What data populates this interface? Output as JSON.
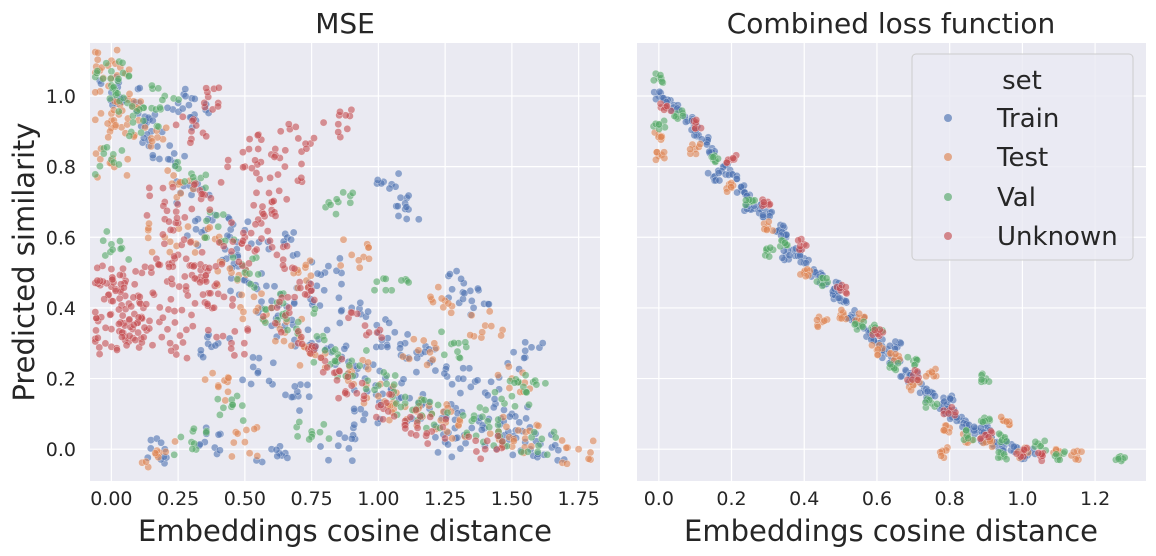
{
  "figure": {
    "ylabel": "Predicted similarity"
  },
  "colors": {
    "background": "#eaeaf2",
    "grid": "#ffffff",
    "text": "#262626",
    "train": "#4c72b0",
    "test": "#dd8452",
    "val": "#55a868",
    "unknown": "#c44e52"
  },
  "chart_data": [
    {
      "type": "scatter",
      "title": "MSE",
      "xlabel": "Embeddings cosine distance",
      "ylabel": "Predicted similarity",
      "xlim": [
        -0.08,
        1.83
      ],
      "ylim": [
        -0.09,
        1.15
      ],
      "xticks": [
        0.0,
        0.25,
        0.5,
        0.75,
        1.0,
        1.25,
        1.5,
        1.75
      ],
      "xtick_labels": [
        "0.00",
        "0.25",
        "0.50",
        "0.75",
        "1.00",
        "1.25",
        "1.50",
        "1.75"
      ],
      "yticks": [
        0.0,
        0.2,
        0.4,
        0.6,
        0.8,
        1.0
      ],
      "ytick_labels": [
        "0.0",
        "0.2",
        "0.4",
        "0.6",
        "0.8",
        "1.0"
      ],
      "grid": true,
      "series": [
        {
          "name": "Train",
          "points": [
            [
              0.0,
              1.01
            ],
            [
              0.05,
              0.99
            ],
            [
              0.1,
              0.95
            ],
            [
              0.15,
              0.9
            ],
            [
              0.22,
              0.82
            ],
            [
              0.3,
              0.72
            ],
            [
              0.35,
              0.62
            ],
            [
              0.45,
              0.55
            ],
            [
              0.5,
              0.48
            ],
            [
              0.6,
              0.42
            ],
            [
              0.65,
              0.35
            ],
            [
              0.75,
              0.3
            ],
            [
              0.85,
              0.25
            ],
            [
              0.95,
              0.2
            ],
            [
              1.05,
              0.17
            ],
            [
              1.15,
              0.12
            ],
            [
              1.25,
              0.09
            ],
            [
              1.35,
              0.06
            ],
            [
              1.45,
              0.04
            ],
            [
              1.55,
              0.02
            ],
            [
              1.65,
              0.005
            ],
            [
              0.4,
              0.3
            ],
            [
              0.55,
              0.22
            ],
            [
              0.7,
              0.15
            ],
            [
              0.8,
              0.5
            ],
            [
              0.9,
              0.4
            ],
            [
              1.0,
              0.33
            ],
            [
              1.1,
              0.3
            ],
            [
              1.2,
              0.25
            ],
            [
              1.3,
              0.2
            ],
            [
              1.4,
              0.16
            ],
            [
              1.5,
              0.1
            ],
            [
              1.55,
              0.26
            ],
            [
              0.25,
              0.98
            ],
            [
              0.3,
              0.94
            ],
            [
              1.05,
              0.75
            ],
            [
              0.35,
              0.02
            ],
            [
              0.6,
              0.0
            ],
            [
              0.85,
              0.01
            ],
            [
              0.2,
              0.0
            ],
            [
              1.1,
              0.68
            ],
            [
              0.5,
              0.62
            ],
            [
              0.65,
              0.58
            ],
            [
              0.75,
              0.45
            ],
            [
              1.32,
              0.47
            ],
            [
              1.35,
              0.42
            ],
            [
              0.95,
              0.1
            ],
            [
              1.25,
              0.02
            ]
          ]
        },
        {
          "name": "Test",
          "points": [
            [
              0.0,
              1.1
            ],
            [
              0.0,
              1.05
            ],
            [
              0.0,
              0.95
            ],
            [
              0.0,
              0.91
            ],
            [
              0.0,
              0.81
            ],
            [
              0.08,
              0.97
            ],
            [
              0.15,
              0.88
            ],
            [
              0.25,
              0.75
            ],
            [
              0.35,
              0.6
            ],
            [
              0.45,
              0.5
            ],
            [
              0.55,
              0.4
            ],
            [
              0.65,
              0.33
            ],
            [
              0.75,
              0.27
            ],
            [
              0.9,
              0.22
            ],
            [
              1.0,
              0.15
            ],
            [
              1.1,
              0.12
            ],
            [
              1.2,
              0.1
            ],
            [
              1.3,
              0.07
            ],
            [
              1.45,
              0.05
            ],
            [
              1.55,
              0.03
            ],
            [
              1.75,
              0.0
            ],
            [
              0.2,
              0.6
            ],
            [
              0.18,
              -0.01
            ],
            [
              0.5,
              0.02
            ],
            [
              0.9,
              0.55
            ],
            [
              1.25,
              0.42
            ],
            [
              1.4,
              0.35
            ],
            [
              1.5,
              0.2
            ],
            [
              0.7,
              0.5
            ],
            [
              0.4,
              0.18
            ],
            [
              1.15,
              0.28
            ]
          ]
        },
        {
          "name": "Val",
          "points": [
            [
              0.0,
              1.07
            ],
            [
              0.0,
              1.03
            ],
            [
              0.0,
              0.82
            ],
            [
              0.0,
              0.58
            ],
            [
              0.06,
              0.98
            ],
            [
              0.12,
              0.93
            ],
            [
              0.2,
              1.0
            ],
            [
              0.3,
              0.78
            ],
            [
              0.4,
              0.63
            ],
            [
              0.5,
              0.5
            ],
            [
              0.6,
              0.4
            ],
            [
              0.7,
              0.36
            ],
            [
              0.8,
              0.28
            ],
            [
              0.9,
              0.25
            ],
            [
              1.0,
              0.18
            ],
            [
              1.1,
              0.13
            ],
            [
              1.2,
              0.1
            ],
            [
              1.35,
              0.08
            ],
            [
              1.45,
              0.05
            ],
            [
              1.58,
              0.19
            ],
            [
              1.6,
              0.01
            ],
            [
              0.3,
              0.02
            ],
            [
              0.45,
              0.12
            ],
            [
              0.85,
              0.7
            ],
            [
              1.05,
              0.45
            ],
            [
              1.3,
              0.3
            ],
            [
              0.75,
              0.05
            ],
            [
              1.5,
              0.15
            ]
          ]
        },
        {
          "name": "Unknown",
          "points": [
            [
              0.0,
              0.34
            ],
            [
              0.0,
              0.29
            ],
            [
              0.0,
              0.42
            ],
            [
              0.0,
              0.46
            ],
            [
              0.0,
              0.51
            ],
            [
              0.05,
              0.47
            ],
            [
              0.05,
              0.35
            ],
            [
              0.08,
              0.34
            ],
            [
              0.1,
              0.33
            ],
            [
              0.12,
              0.4
            ],
            [
              0.15,
              0.5
            ],
            [
              0.18,
              0.36
            ],
            [
              0.2,
              0.7
            ],
            [
              0.25,
              0.55
            ],
            [
              0.28,
              0.45
            ],
            [
              0.3,
              0.52
            ],
            [
              0.35,
              0.48
            ],
            [
              0.4,
              0.44
            ],
            [
              0.45,
              0.56
            ],
            [
              0.5,
              0.6
            ],
            [
              0.55,
              0.65
            ],
            [
              0.6,
              0.7
            ],
            [
              0.65,
              0.8
            ],
            [
              0.7,
              0.88
            ],
            [
              0.85,
              0.92
            ],
            [
              0.4,
              0.98
            ],
            [
              0.3,
              0.9
            ],
            [
              0.55,
              0.85
            ],
            [
              0.6,
              0.4
            ],
            [
              0.7,
              0.3
            ],
            [
              0.8,
              0.25
            ],
            [
              0.9,
              0.18
            ],
            [
              1.0,
              0.12
            ],
            [
              1.1,
              0.08
            ],
            [
              1.2,
              0.05
            ],
            [
              1.4,
              0.0
            ],
            [
              0.45,
              0.3
            ],
            [
              0.25,
              0.64
            ],
            [
              0.35,
              0.72
            ],
            [
              0.5,
              0.8
            ],
            [
              0.62,
              0.55
            ],
            [
              0.75,
              0.45
            ],
            [
              0.95,
              0.35
            ],
            [
              0.3,
              0.38
            ],
            [
              0.22,
              0.3
            ]
          ]
        }
      ]
    },
    {
      "type": "scatter",
      "title": "Combined loss function",
      "xlabel": "Embeddings cosine distance",
      "ylabel": "",
      "xlim": [
        -0.06,
        1.34
      ],
      "ylim": [
        -0.09,
        1.15
      ],
      "xticks": [
        0.0,
        0.2,
        0.4,
        0.6,
        0.8,
        1.0,
        1.2
      ],
      "xtick_labels": [
        "0.0",
        "0.2",
        "0.4",
        "0.6",
        "0.8",
        "1.0",
        "1.2"
      ],
      "yticks": [
        0.0,
        0.2,
        0.4,
        0.6,
        0.8,
        1.0
      ],
      "grid": true,
      "legend": {
        "title": "set",
        "position": "upper right",
        "entries": [
          "Train",
          "Test",
          "Val",
          "Unknown"
        ]
      },
      "series": [
        {
          "name": "Train",
          "points": [
            [
              0.0,
              1.0
            ],
            [
              0.02,
              0.98
            ],
            [
              0.05,
              0.96
            ],
            [
              0.08,
              0.93
            ],
            [
              0.1,
              0.9
            ],
            [
              0.13,
              0.87
            ],
            [
              0.15,
              0.84
            ],
            [
              0.18,
              0.8
            ],
            [
              0.2,
              0.78
            ],
            [
              0.23,
              0.74
            ],
            [
              0.25,
              0.72
            ],
            [
              0.28,
              0.68
            ],
            [
              0.3,
              0.66
            ],
            [
              0.33,
              0.62
            ],
            [
              0.35,
              0.6
            ],
            [
              0.38,
              0.56
            ],
            [
              0.4,
              0.54
            ],
            [
              0.43,
              0.5
            ],
            [
              0.45,
              0.48
            ],
            [
              0.48,
              0.44
            ],
            [
              0.5,
              0.42
            ],
            [
              0.53,
              0.38
            ],
            [
              0.55,
              0.36
            ],
            [
              0.58,
              0.33
            ],
            [
              0.6,
              0.3
            ],
            [
              0.63,
              0.27
            ],
            [
              0.65,
              0.25
            ],
            [
              0.68,
              0.22
            ],
            [
              0.7,
              0.2
            ],
            [
              0.73,
              0.17
            ],
            [
              0.75,
              0.15
            ],
            [
              0.78,
              0.12
            ],
            [
              0.8,
              0.1
            ],
            [
              0.83,
              0.08
            ],
            [
              0.85,
              0.06
            ],
            [
              0.88,
              0.05
            ],
            [
              0.9,
              0.03
            ],
            [
              0.93,
              0.02
            ],
            [
              0.95,
              0.01
            ],
            [
              0.98,
              0.0
            ],
            [
              1.0,
              -0.02
            ],
            [
              1.02,
              -0.01
            ],
            [
              0.15,
              0.77
            ],
            [
              0.25,
              0.68
            ],
            [
              0.35,
              0.55
            ],
            [
              0.5,
              0.46
            ],
            [
              0.65,
              0.29
            ],
            [
              0.8,
              0.14
            ],
            [
              0.9,
              0.06
            ]
          ]
        },
        {
          "name": "Test",
          "points": [
            [
              0.0,
              0.83
            ],
            [
              0.0,
              0.89
            ],
            [
              0.1,
              0.85
            ],
            [
              0.2,
              0.74
            ],
            [
              0.3,
              0.63
            ],
            [
              0.4,
              0.5
            ],
            [
              0.5,
              0.38
            ],
            [
              0.6,
              0.28
            ],
            [
              0.7,
              0.18
            ],
            [
              0.8,
              0.06
            ],
            [
              0.9,
              0.02
            ],
            [
              1.0,
              -0.01
            ],
            [
              1.1,
              -0.01
            ],
            [
              1.15,
              -0.02
            ],
            [
              0.45,
              0.36
            ],
            [
              0.55,
              0.37
            ],
            [
              0.85,
              0.03
            ],
            [
              0.95,
              0.08
            ],
            [
              0.75,
              0.22
            ],
            [
              0.65,
              0.26
            ],
            [
              0.78,
              -0.01
            ]
          ]
        },
        {
          "name": "Val",
          "points": [
            [
              0.0,
              1.05
            ],
            [
              0.0,
              0.92
            ],
            [
              0.05,
              0.95
            ],
            [
              0.15,
              0.82
            ],
            [
              0.25,
              0.7
            ],
            [
              0.35,
              0.58
            ],
            [
              0.45,
              0.47
            ],
            [
              0.55,
              0.35
            ],
            [
              0.65,
              0.23
            ],
            [
              0.75,
              0.13
            ],
            [
              0.85,
              0.04
            ],
            [
              0.95,
              0.03
            ],
            [
              1.05,
              0.01
            ],
            [
              1.1,
              -0.02
            ],
            [
              1.27,
              -0.02
            ],
            [
              0.3,
              0.56
            ],
            [
              0.6,
              0.34
            ],
            [
              0.7,
              0.25
            ],
            [
              0.9,
              0.08
            ],
            [
              0.95,
              -0.02
            ],
            [
              0.9,
              0.2
            ]
          ]
        },
        {
          "name": "Unknown",
          "points": [
            [
              0.02,
              0.97
            ],
            [
              0.1,
              0.92
            ],
            [
              0.2,
              0.82
            ],
            [
              0.3,
              0.7
            ],
            [
              0.4,
              0.58
            ],
            [
              0.5,
              0.45
            ],
            [
              0.6,
              0.33
            ],
            [
              0.7,
              0.21
            ],
            [
              0.8,
              0.11
            ],
            [
              0.9,
              0.04
            ],
            [
              1.0,
              -0.01
            ],
            [
              1.05,
              -0.02
            ]
          ]
        }
      ]
    }
  ]
}
